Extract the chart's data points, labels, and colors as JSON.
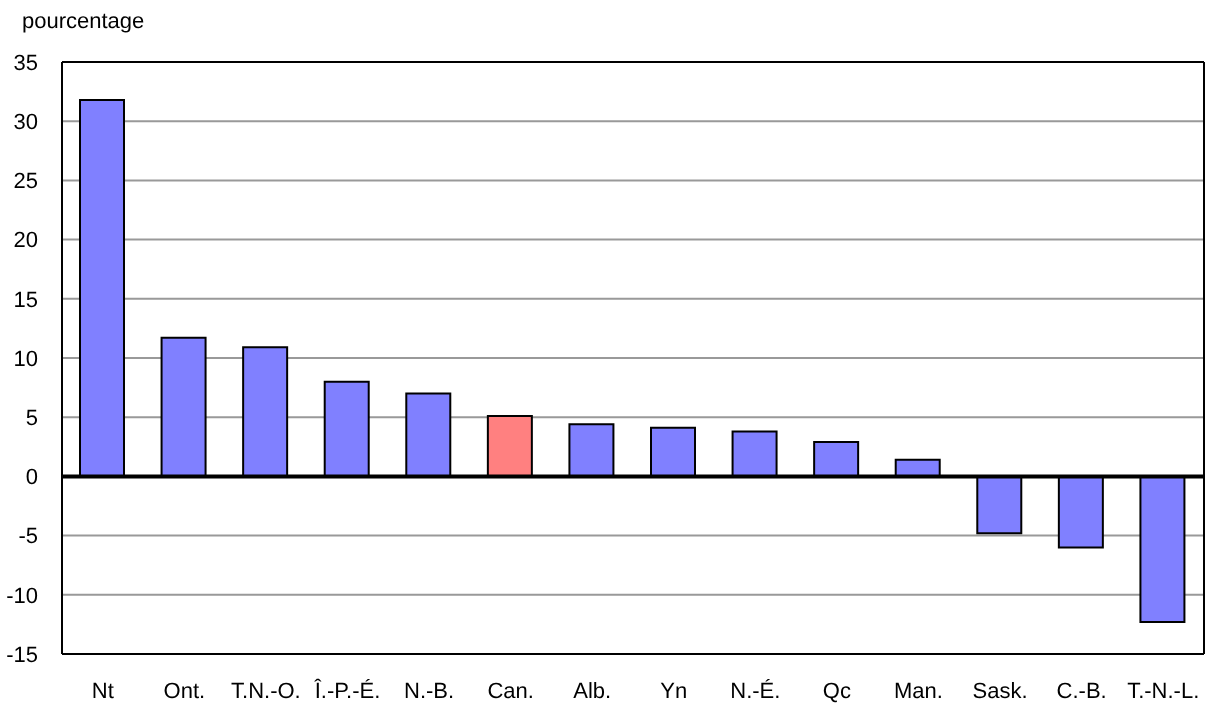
{
  "chart_data": {
    "type": "bar",
    "ylabel": "pourcentage",
    "categories": [
      "Nt",
      "Ont.",
      "T.N.-O.",
      "Î.-P.-É.",
      "N.-B.",
      "Can.",
      "Alb.",
      "Yn",
      "N.-É.",
      "Qc",
      "Man.",
      "Sask.",
      "C.-B.",
      "T.-N.-L."
    ],
    "values": [
      31.8,
      11.7,
      10.9,
      8.0,
      7.0,
      5.1,
      4.4,
      4.1,
      3.8,
      2.9,
      1.4,
      -4.8,
      -6.0,
      -12.3
    ],
    "colors": [
      "#8080ff",
      "#8080ff",
      "#8080ff",
      "#8080ff",
      "#8080ff",
      "#ff8080",
      "#8080ff",
      "#8080ff",
      "#8080ff",
      "#8080ff",
      "#8080ff",
      "#8080ff",
      "#8080ff",
      "#8080ff"
    ],
    "ylim": [
      -15,
      35
    ],
    "yticks": [
      -15,
      -10,
      -5,
      0,
      5,
      10,
      15,
      20,
      25,
      30,
      35
    ],
    "grid": "y"
  }
}
